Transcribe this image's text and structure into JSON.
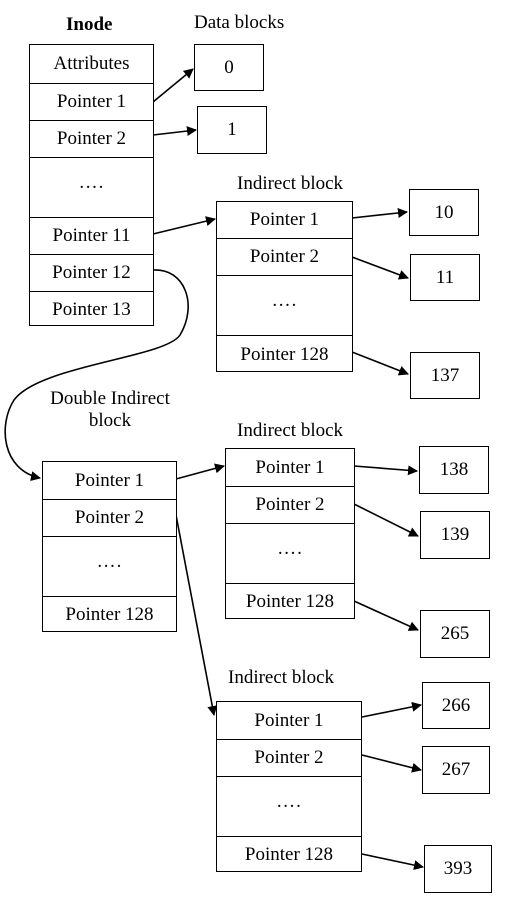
{
  "inode": {
    "title": "Inode",
    "rows": [
      "Attributes",
      "Pointer 1",
      "Pointer 2",
      "….",
      "Pointer 11",
      "Pointer 12",
      "Pointer 13"
    ]
  },
  "data_blocks": {
    "title": "Data blocks",
    "blocks": [
      "0",
      "1"
    ]
  },
  "indirect_1": {
    "title": "Indirect block",
    "rows": [
      "Pointer 1",
      "Pointer 2",
      "….",
      "Pointer 128"
    ],
    "targets": [
      "10",
      "11",
      "137"
    ]
  },
  "double_indirect": {
    "title_line1": "Double Indirect",
    "title_line2": "block",
    "rows": [
      "Pointer 1",
      "Pointer 2",
      "….",
      "Pointer 128"
    ]
  },
  "indirect_2": {
    "title": "Indirect block",
    "rows": [
      "Pointer 1",
      "Pointer 2",
      "….",
      "Pointer 128"
    ],
    "targets": [
      "138",
      "139",
      "265"
    ]
  },
  "indirect_3": {
    "title": "Indirect block",
    "rows": [
      "Pointer 1",
      "Pointer 2",
      "….",
      "Pointer 128"
    ],
    "targets": [
      "266",
      "267",
      "393"
    ]
  }
}
